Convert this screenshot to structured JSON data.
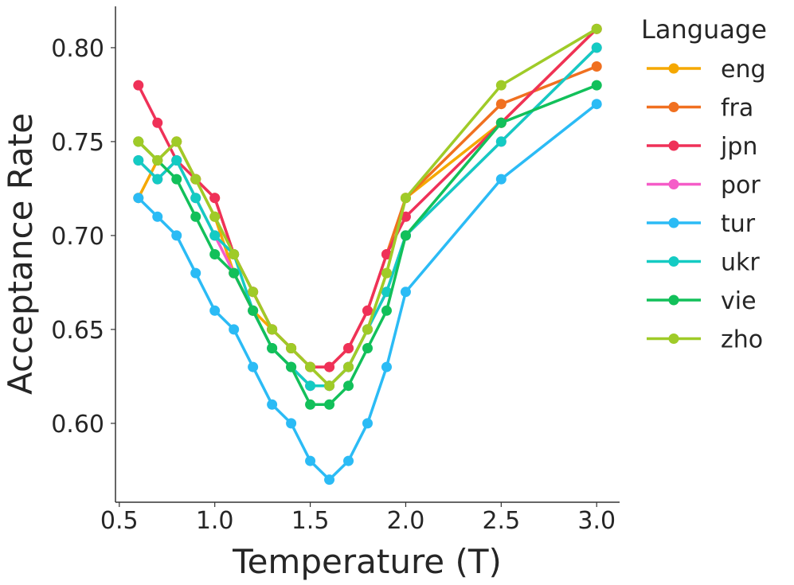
{
  "chart_data": {
    "type": "line",
    "xlabel": "Temperature (T)",
    "ylabel": "Acceptance Rate",
    "xlim": [
      0.48,
      3.12
    ],
    "ylim": [
      0.558,
      0.822
    ],
    "x_ticks": [
      "0.5",
      "1.0",
      "1.5",
      "2.0",
      "2.5",
      "3.0"
    ],
    "y_ticks": [
      "0.60",
      "0.65",
      "0.70",
      "0.75",
      "0.80"
    ],
    "grid": false,
    "legend": {
      "title": "Language",
      "placement": "outside-right"
    },
    "x": [
      0.6,
      0.7,
      0.8,
      0.9,
      1.0,
      1.1,
      1.2,
      1.3,
      1.4,
      1.5,
      1.6,
      1.7,
      1.8,
      1.9,
      2.0,
      2.5,
      3.0
    ],
    "series": [
      {
        "name": "eng",
        "color": "#f5a800",
        "values": [
          0.72,
          0.74,
          0.75,
          0.73,
          0.71,
          0.68,
          0.66,
          0.65,
          0.64,
          0.63,
          0.62,
          0.63,
          0.65,
          0.68,
          0.72,
          0.76,
          0.81
        ]
      },
      {
        "name": "fra",
        "color": "#f07020",
        "values": [
          0.75,
          0.74,
          0.75,
          0.73,
          0.72,
          0.69,
          0.67,
          0.65,
          0.64,
          0.63,
          0.63,
          0.64,
          0.66,
          0.69,
          0.72,
          0.77,
          0.79
        ]
      },
      {
        "name": "jpn",
        "color": "#ef3158",
        "values": [
          0.78,
          0.76,
          0.74,
          0.73,
          0.72,
          0.69,
          0.67,
          0.65,
          0.64,
          0.63,
          0.63,
          0.64,
          0.66,
          0.69,
          0.71,
          0.76,
          0.81
        ]
      },
      {
        "name": "por",
        "color": "#f55cc8",
        "values": [
          0.74,
          0.73,
          0.74,
          0.72,
          0.7,
          0.68,
          0.66,
          0.64,
          0.63,
          0.62,
          0.62,
          0.63,
          0.65,
          0.67,
          0.7,
          0.75,
          0.8
        ]
      },
      {
        "name": "tur",
        "color": "#2bbbf5",
        "values": [
          0.72,
          0.71,
          0.7,
          0.68,
          0.66,
          0.65,
          0.63,
          0.61,
          0.6,
          0.58,
          0.57,
          0.58,
          0.6,
          0.63,
          0.67,
          0.73,
          0.77
        ]
      },
      {
        "name": "ukr",
        "color": "#14cbc3",
        "values": [
          0.74,
          0.73,
          0.74,
          0.72,
          0.7,
          0.69,
          0.66,
          0.64,
          0.63,
          0.62,
          0.62,
          0.63,
          0.65,
          0.67,
          0.7,
          0.75,
          0.8
        ]
      },
      {
        "name": "vie",
        "color": "#12c05a",
        "values": [
          0.75,
          0.74,
          0.73,
          0.71,
          0.69,
          0.68,
          0.66,
          0.64,
          0.63,
          0.61,
          0.61,
          0.62,
          0.64,
          0.66,
          0.7,
          0.76,
          0.78
        ]
      },
      {
        "name": "zho",
        "color": "#9fcb28",
        "values": [
          0.75,
          0.74,
          0.75,
          0.73,
          0.71,
          0.69,
          0.67,
          0.65,
          0.64,
          0.63,
          0.62,
          0.63,
          0.65,
          0.68,
          0.72,
          0.78,
          0.81
        ]
      }
    ]
  }
}
